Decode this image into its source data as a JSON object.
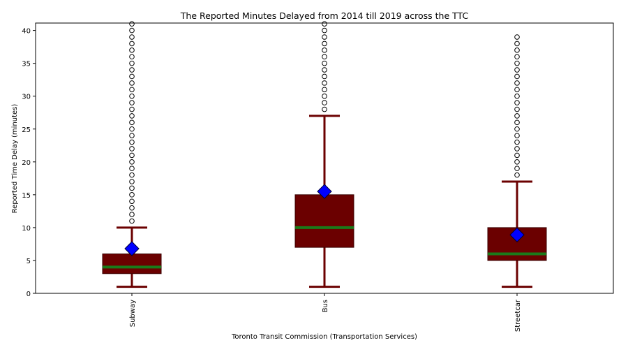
{
  "chart_data": {
    "type": "box",
    "title": "The Reported Minutes Delayed from 2014 till 2019 across the TTC",
    "xlabel": "Toronto Transit Commission (Transportation Services)",
    "ylabel": "Reported Time Delay (minutes)",
    "ylim": [
      0,
      41
    ],
    "yticks": [
      0,
      5,
      10,
      15,
      20,
      25,
      30,
      35,
      40
    ],
    "categories": [
      "Subway",
      "Bus",
      "Streetcar"
    ],
    "boxes": [
      {
        "category": "Subway",
        "whisker_low": 1,
        "q1": 3,
        "median": 4,
        "q3": 6,
        "whisker_high": 10,
        "mean": 6.8,
        "outliers": [
          11,
          12,
          13,
          14,
          15,
          16,
          17,
          18,
          19,
          20,
          21,
          22,
          23,
          24,
          25,
          26,
          27,
          28,
          29,
          30,
          31,
          32,
          33,
          34,
          35,
          36,
          37,
          38,
          39,
          40,
          41
        ]
      },
      {
        "category": "Bus",
        "whisker_low": 1,
        "q1": 7,
        "median": 10,
        "q3": 15,
        "whisker_high": 27,
        "mean": 15.5,
        "outliers": [
          28,
          29,
          30,
          31,
          32,
          33,
          34,
          35,
          36,
          37,
          38,
          39,
          40,
          41
        ]
      },
      {
        "category": "Streetcar",
        "whisker_low": 1,
        "q1": 5,
        "median": 6,
        "q3": 10,
        "whisker_high": 17,
        "mean": 8.9,
        "outliers": [
          18,
          19,
          20,
          21,
          22,
          23,
          24,
          25,
          26,
          27,
          28,
          29,
          30,
          31,
          32,
          33,
          34,
          35,
          36,
          37,
          38,
          39
        ]
      }
    ],
    "colors": {
      "box": "#6b0000",
      "median": "#1a7a1a",
      "mean": "#0000ff",
      "whisker": "#6b0000",
      "outlier_edge": "#000000"
    },
    "grid": false,
    "legend": "none"
  }
}
